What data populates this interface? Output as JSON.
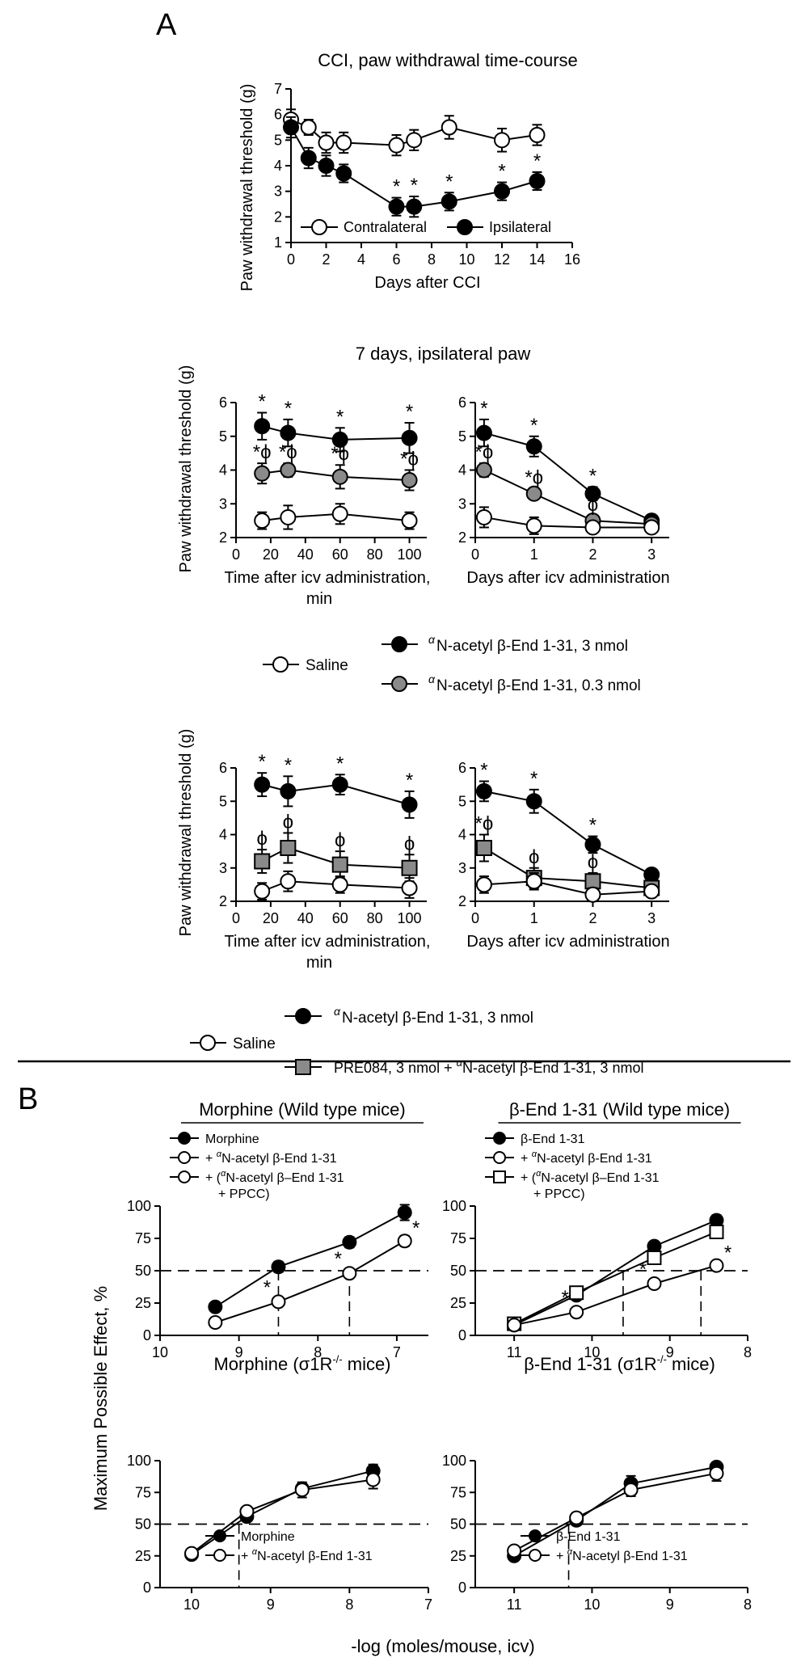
{
  "panel_labels": {
    "a": "A",
    "b": "B"
  },
  "mid_title": "7 days, ipsilateral paw",
  "ylabel_paw": "Paw withdrawal threshold (g)",
  "ylabel_mpe": "Maximum Possible Effect, %",
  "xlabel_b": "-log (moles/mouse, icv)",
  "legend_mid": {
    "saline": "Saline",
    "ab3": "N-acetyl β-End 1-31, 3 nmol",
    "ab03": "N-acetyl β-End 1-31, 0.3 nmol"
  },
  "legend_low": {
    "saline": "Saline",
    "ab3": "N-acetyl β-End 1-31, 3 nmol",
    "pre_prefix": "PRE084, 3 nmol + ",
    "pre_suffix": "N-acetyl β-End 1-31, 3 nmol"
  },
  "colors": {
    "black": "#000000",
    "grey": "#8a8a8a",
    "white": "#ffffff"
  },
  "chart_data": [
    {
      "id": "A1",
      "type": "line",
      "title": "CCI, paw withdrawal time-course",
      "xlabel": "Days after CCI",
      "ylabel": "Paw withdrawal threshold (g)",
      "xlim": [
        0,
        16
      ],
      "ylim": [
        1,
        7
      ],
      "xticks": [
        0,
        2,
        4,
        6,
        8,
        10,
        12,
        14,
        16
      ],
      "yticks": [
        1,
        2,
        3,
        4,
        5,
        6,
        7
      ],
      "legend": [
        "Contralateral",
        "Ipsilateral"
      ],
      "series": [
        {
          "name": "Contralateral",
          "marker": "circle",
          "fill": "white",
          "x": [
            0,
            1,
            2,
            3,
            6,
            7,
            9,
            12,
            14
          ],
          "y": [
            5.8,
            5.5,
            4.9,
            4.9,
            4.8,
            5.0,
            5.5,
            5.0,
            5.2
          ],
          "err": [
            0.4,
            0.3,
            0.4,
            0.4,
            0.4,
            0.4,
            0.45,
            0.45,
            0.4
          ],
          "ann": []
        },
        {
          "name": "Ipsilateral",
          "marker": "circle",
          "fill": "black",
          "x": [
            0,
            1,
            2,
            3,
            6,
            7,
            9,
            12,
            14
          ],
          "y": [
            5.5,
            4.3,
            4.0,
            3.7,
            2.4,
            2.4,
            2.6,
            3.0,
            3.4
          ],
          "err": [
            0.4,
            0.4,
            0.4,
            0.35,
            0.35,
            0.4,
            0.35,
            0.35,
            0.35
          ],
          "ann": [
            "",
            "",
            "",
            "",
            "*",
            "*",
            "*",
            "*",
            "*"
          ]
        }
      ]
    },
    {
      "id": "A2",
      "type": "line",
      "title": "",
      "xlabel": "Time after icv administration,",
      "xlabel2": "min",
      "ylabel": "Paw withdrawal threshold (g)",
      "xlim": [
        0,
        110
      ],
      "ylim": [
        2,
        6
      ],
      "xticks": [
        0,
        20,
        40,
        60,
        80,
        100
      ],
      "yticks": [
        2,
        3,
        4,
        5,
        6
      ],
      "series": [
        {
          "name": "N-acetyl β-End 1-31, 3 nmol",
          "marker": "circle",
          "fill": "black",
          "x": [
            15,
            30,
            60,
            100
          ],
          "y": [
            5.3,
            5.1,
            4.9,
            4.95
          ],
          "err": [
            0.4,
            0.4,
            0.35,
            0.45
          ],
          "ann": [
            "*",
            "*",
            "*",
            "*"
          ]
        },
        {
          "name": "N-acetyl β-End 1-31, 0.3 nmol",
          "marker": "circle",
          "fill": "grey",
          "x": [
            15,
            30,
            60,
            100
          ],
          "y": [
            3.9,
            4.0,
            3.8,
            3.7
          ],
          "err": [
            0.3,
            0.2,
            0.35,
            0.3
          ],
          "ann": [
            "*ϕ",
            "*ϕ",
            "*ϕ",
            "*ϕ"
          ]
        },
        {
          "name": "Saline",
          "marker": "circle",
          "fill": "white",
          "x": [
            15,
            30,
            60,
            100
          ],
          "y": [
            2.5,
            2.6,
            2.7,
            2.5
          ],
          "err": [
            0.25,
            0.35,
            0.3,
            0.25
          ],
          "ann": []
        }
      ]
    },
    {
      "id": "A3",
      "type": "line",
      "title": "",
      "xlabel": "Days after icv administration",
      "ylabel": "",
      "xlim": [
        0,
        3.3
      ],
      "ylim": [
        2,
        6
      ],
      "xticks": [
        0,
        1,
        2,
        3
      ],
      "yticks": [
        2,
        3,
        4,
        5,
        6
      ],
      "series": [
        {
          "name": "N-acetyl β-End 1-31, 3 nmol",
          "marker": "circle",
          "fill": "black",
          "x": [
            0.15,
            1,
            2,
            3
          ],
          "y": [
            5.1,
            4.7,
            3.3,
            2.5
          ],
          "err": [
            0.4,
            0.3,
            0.2,
            0.15
          ],
          "ann": [
            "*",
            "*",
            "*",
            ""
          ]
        },
        {
          "name": "N-acetyl β-End 1-31, 0.3 nmol",
          "marker": "circle",
          "fill": "grey",
          "x": [
            0.15,
            1,
            2,
            3
          ],
          "y": [
            4.0,
            3.3,
            2.5,
            2.4
          ],
          "err": [
            0.2,
            0.15,
            0.15,
            0.1
          ],
          "ann": [
            "*ϕ",
            "*ϕ",
            "ϕ",
            ""
          ]
        },
        {
          "name": "Saline",
          "marker": "circle",
          "fill": "white",
          "x": [
            0.15,
            1,
            2,
            3
          ],
          "y": [
            2.6,
            2.35,
            2.3,
            2.3
          ],
          "err": [
            0.3,
            0.25,
            0.15,
            0.15
          ],
          "ann": []
        }
      ]
    },
    {
      "id": "A4",
      "type": "line",
      "title": "",
      "xlabel": "Time after icv administration,",
      "xlabel2": "min",
      "ylabel": "Paw withdrawal threshold (g)",
      "xlim": [
        0,
        110
      ],
      "ylim": [
        2,
        6
      ],
      "xticks": [
        0,
        20,
        40,
        60,
        80,
        100
      ],
      "yticks": [
        2,
        3,
        4,
        5,
        6
      ],
      "series": [
        {
          "name": "N-acetyl β-End 1-31, 3 nmol",
          "marker": "circle",
          "fill": "black",
          "x": [
            15,
            30,
            60,
            100
          ],
          "y": [
            5.5,
            5.3,
            5.5,
            4.9
          ],
          "err": [
            0.35,
            0.45,
            0.3,
            0.4
          ],
          "ann": [
            "*",
            "*",
            "*",
            "*"
          ]
        },
        {
          "name": "PRE084, 3 nmol + N-acetyl β-End 1-31, 3 nmol",
          "marker": "square",
          "fill": "grey",
          "x": [
            15,
            30,
            60,
            100
          ],
          "y": [
            3.2,
            3.6,
            3.1,
            3.0
          ],
          "err": [
            0.35,
            0.45,
            0.4,
            0.4
          ],
          "ann": [
            "ϕ",
            "ϕ",
            "ϕ",
            "ϕ"
          ]
        },
        {
          "name": "Saline",
          "marker": "circle",
          "fill": "white",
          "x": [
            15,
            30,
            60,
            100
          ],
          "y": [
            2.3,
            2.6,
            2.5,
            2.4
          ],
          "err": [
            0.25,
            0.3,
            0.25,
            0.3
          ],
          "ann": []
        }
      ]
    },
    {
      "id": "A5",
      "type": "line",
      "title": "",
      "xlabel": "Days after icv administration",
      "ylabel": "",
      "xlim": [
        0,
        3.3
      ],
      "ylim": [
        2,
        6
      ],
      "xticks": [
        0,
        1,
        2,
        3
      ],
      "yticks": [
        2,
        3,
        4,
        5,
        6
      ],
      "series": [
        {
          "name": "N-acetyl β-End 1-31, 3 nmol",
          "marker": "circle",
          "fill": "black",
          "x": [
            0.15,
            1,
            2,
            3
          ],
          "y": [
            5.3,
            5.0,
            3.7,
            2.8
          ],
          "err": [
            0.3,
            0.35,
            0.25,
            0.15
          ],
          "ann": [
            "*",
            "*",
            "*",
            ""
          ]
        },
        {
          "name": "PRE084, 3 nmol + N-acetyl β-End 1-31, 3 nmol",
          "marker": "square",
          "fill": "grey",
          "x": [
            0.15,
            1,
            2,
            3
          ],
          "y": [
            3.6,
            2.7,
            2.6,
            2.4
          ],
          "err": [
            0.4,
            0.3,
            0.25,
            0.15
          ],
          "ann": [
            "*ϕ",
            "ϕ",
            "ϕ",
            ""
          ]
        },
        {
          "name": "Saline",
          "marker": "circle",
          "fill": "white",
          "x": [
            0.15,
            1,
            2,
            3
          ],
          "y": [
            2.5,
            2.6,
            2.2,
            2.3
          ],
          "err": [
            0.25,
            0.25,
            0.2,
            0.15
          ],
          "ann": []
        }
      ]
    },
    {
      "id": "B1",
      "type": "line",
      "title": "Morphine (Wild type mice)",
      "xlabel": "",
      "ylabel": "Maximum Possible Effect, %",
      "xlim": [
        10,
        6.6
      ],
      "ylim": [
        0,
        100
      ],
      "xticks": [
        10,
        9,
        8,
        7
      ],
      "yticks": [
        0,
        25,
        50,
        75,
        100
      ],
      "legend": [
        "Morphine",
        "+ N-acetyl β-End 1-31",
        "+ (N-acetyl β–End 1-31 + PPCC)"
      ],
      "ref_lines": {
        "h": 50,
        "v": [
          8.5,
          7.6
        ]
      },
      "series": [
        {
          "name": "Morphine",
          "marker": "circle",
          "fill": "black",
          "x": [
            9.3,
            8.5,
            7.6,
            6.9
          ],
          "y": [
            22,
            53,
            72,
            95
          ],
          "err": [
            0,
            4,
            4,
            6
          ],
          "ann": []
        },
        {
          "name": "+ N-acetyl β-End 1-31",
          "marker": "circle",
          "fill": "white",
          "x": [
            9.3,
            8.5,
            7.6,
            6.9
          ],
          "y": [
            10,
            26,
            48,
            73
          ],
          "err": [
            0,
            3,
            3,
            4
          ],
          "ann": [
            "",
            "*",
            "*",
            "*"
          ]
        }
      ]
    },
    {
      "id": "B2",
      "type": "line",
      "title": "β-End 1-31 (Wild type mice)",
      "xlabel": "",
      "ylabel": "",
      "xlim": [
        11.5,
        8
      ],
      "ylim": [
        0,
        100
      ],
      "xticks": [
        11,
        10,
        9,
        8
      ],
      "yticks": [
        0,
        25,
        50,
        75,
        100
      ],
      "legend": [
        "β-End 1-31",
        "+ N-acetyl β-End 1-31",
        "+ (N-acetyl β–End 1-31 + PPCC)"
      ],
      "ref_lines": {
        "h": 50,
        "v": [
          9.6,
          8.6
        ]
      },
      "series": [
        {
          "name": "β-End 1-31",
          "marker": "circle",
          "fill": "black",
          "x": [
            11,
            10.2,
            9.2,
            8.4
          ],
          "y": [
            8,
            31,
            69,
            89
          ],
          "err": [
            0,
            3,
            3,
            4
          ],
          "ann": []
        },
        {
          "name": "+ (N-acetyl β–End 1-31 + PPCC)",
          "marker": "square",
          "fill": "white",
          "x": [
            11,
            10.2,
            9.2,
            8.4
          ],
          "y": [
            9,
            33,
            60,
            80
          ],
          "err": [
            0,
            3,
            4,
            5
          ],
          "ann": []
        },
        {
          "name": "+ N-acetyl β-End 1-31",
          "marker": "circle",
          "fill": "white",
          "x": [
            11,
            10.2,
            9.2,
            8.4
          ],
          "y": [
            8,
            18,
            40,
            54
          ],
          "err": [
            0,
            2,
            3,
            3
          ],
          "ann": [
            "",
            "*",
            "*",
            "*"
          ]
        }
      ]
    },
    {
      "id": "B3",
      "type": "line",
      "title": "Morphine (σ1R-/- mice)",
      "xlabel": "",
      "ylabel": "Maximum Possible Effect, %",
      "xlim": [
        10.4,
        7
      ],
      "ylim": [
        0,
        100
      ],
      "xticks": [
        10,
        9,
        8,
        7
      ],
      "yticks": [
        0,
        25,
        50,
        75,
        100
      ],
      "legend": [
        "Morphine",
        "+ N-acetyl β-End 1-31"
      ],
      "ref_lines": {
        "h": 50,
        "v": [
          9.4
        ]
      },
      "series": [
        {
          "name": "Morphine",
          "marker": "circle",
          "fill": "black",
          "x": [
            10,
            9.3,
            8.6,
            7.7
          ],
          "y": [
            26,
            56,
            78,
            92
          ],
          "err": [
            2,
            3,
            4,
            5
          ],
          "ann": []
        },
        {
          "name": "+ N-acetyl β-End 1-31",
          "marker": "circle",
          "fill": "white",
          "x": [
            10,
            9.3,
            8.6,
            7.7
          ],
          "y": [
            27,
            60,
            77,
            85
          ],
          "err": [
            2,
            3,
            6,
            7
          ],
          "ann": []
        }
      ]
    },
    {
      "id": "B4",
      "type": "line",
      "title": "β-End 1-31 (σ1R-/- mice)",
      "xlabel": "",
      "ylabel": "",
      "xlim": [
        11.5,
        8
      ],
      "ylim": [
        0,
        100
      ],
      "xticks": [
        11,
        10,
        9,
        8
      ],
      "yticks": [
        0,
        25,
        50,
        75,
        100
      ],
      "legend": [
        "β-End 1-31",
        "+ N-acetyl β-End 1-31"
      ],
      "ref_lines": {
        "h": 50,
        "v": [
          10.3
        ]
      },
      "series": [
        {
          "name": "β-End 1-31",
          "marker": "circle",
          "fill": "black",
          "x": [
            11,
            10.2,
            9.5,
            8.4
          ],
          "y": [
            25,
            53,
            82,
            95
          ],
          "err": [
            2,
            4,
            6,
            3
          ],
          "ann": []
        },
        {
          "name": "+ N-acetyl β-End 1-31",
          "marker": "circle",
          "fill": "white",
          "x": [
            11,
            10.2,
            9.5,
            8.4
          ],
          "y": [
            29,
            55,
            77,
            90
          ],
          "err": [
            2,
            4,
            5,
            6
          ],
          "ann": []
        }
      ]
    }
  ]
}
